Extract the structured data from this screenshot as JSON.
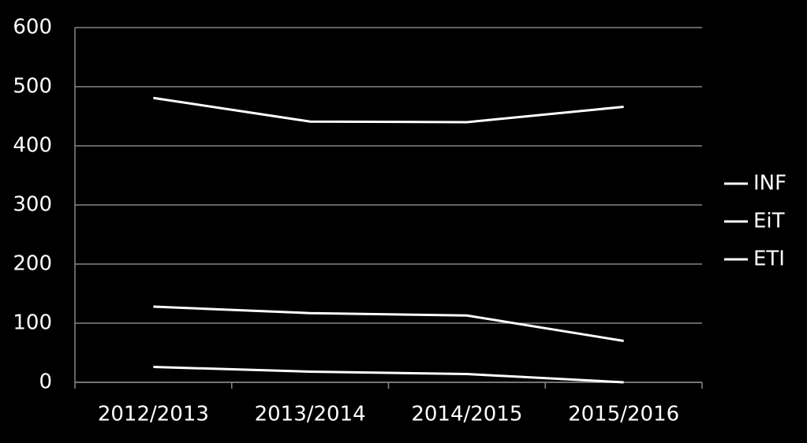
{
  "chart_data": {
    "type": "line",
    "categories": [
      "2012/2013",
      "2013/2014",
      "2014/2015",
      "2015/2016"
    ],
    "series": [
      {
        "name": "INF",
        "color": "#ffffff",
        "values": [
          481,
          441,
          440,
          466
        ]
      },
      {
        "name": "EiT",
        "color": "#ffffff",
        "values": [
          128,
          117,
          113,
          70
        ]
      },
      {
        "name": "ETI",
        "color": "#ffffff",
        "values": [
          26,
          18,
          14,
          0
        ]
      }
    ],
    "ylim": [
      0,
      600
    ],
    "yticks": [
      0,
      100,
      200,
      300,
      400,
      500,
      600
    ],
    "grid": true,
    "legend": "right"
  }
}
